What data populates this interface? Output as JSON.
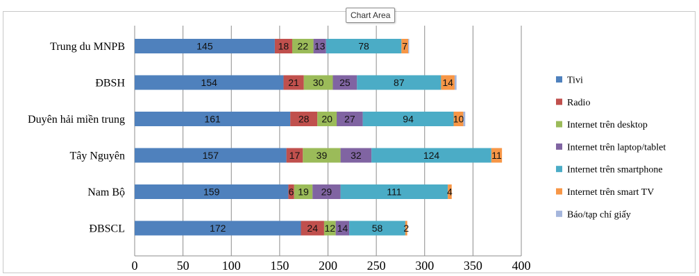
{
  "tooltip": {
    "label": "Chart Area"
  },
  "chart_data": {
    "type": "bar",
    "orientation": "horizontal",
    "stacked": true,
    "categories": [
      "Trung du MNPB",
      "ĐBSH",
      "Duyên hải miền trung",
      "Tây Nguyên",
      "Nam Bộ",
      "ĐBSCL"
    ],
    "series": [
      {
        "name": "Tivi",
        "color": "#4f81bd",
        "values": [
          145,
          154,
          161,
          157,
          159,
          172
        ]
      },
      {
        "name": "Radio",
        "color": "#c0504d",
        "values": [
          18,
          21,
          28,
          17,
          6,
          24
        ]
      },
      {
        "name": "Internet trên desktop",
        "color": "#9bbb59",
        "values": [
          22,
          30,
          20,
          39,
          19,
          12
        ]
      },
      {
        "name": "Internet trên laptop/tablet",
        "color": "#8064a2",
        "values": [
          13,
          25,
          27,
          32,
          29,
          14
        ]
      },
      {
        "name": "Internet trên smartphone",
        "color": "#4bacc6",
        "values": [
          78,
          87,
          94,
          124,
          111,
          58
        ]
      },
      {
        "name": "Internet trên smart TV",
        "color": "#f79646",
        "values": [
          7,
          14,
          10,
          11,
          4,
          2
        ]
      },
      {
        "name": "Báo/tạp chí giấy",
        "color": "#a5b6dc",
        "values": [
          1,
          2,
          2,
          0,
          0,
          0
        ]
      }
    ],
    "xlim": [
      0,
      400
    ],
    "xticks": [
      0,
      50,
      100,
      150,
      200,
      250,
      300,
      350,
      400
    ],
    "grid": "vertical",
    "legend": "right"
  }
}
